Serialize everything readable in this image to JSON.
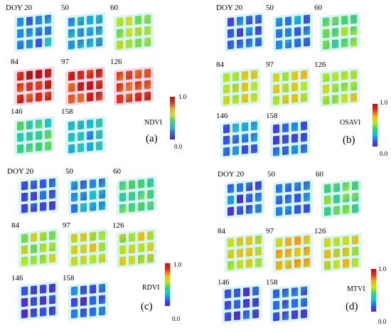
{
  "colors": {
    "ramp": [
      "#5b1cc8",
      "#2a5ff5",
      "#19c3d6",
      "#3cd36b",
      "#bfe91c",
      "#f0b21a",
      "#e8321a",
      "#b01010"
    ],
    "bg_halo": [
      "#d7f5f2",
      "#f6d6e8"
    ]
  },
  "panels": [
    {
      "id": "a",
      "letter": "(a)",
      "index_name": "NDVI",
      "cbar_max": "1.0",
      "cbar_min": "0.0",
      "groups": [
        {
          "label": "DOY 20",
          "level": 0.2
        },
        {
          "label": "50",
          "level": 0.25
        },
        {
          "label": "60",
          "level": 0.55
        },
        {
          "label": "84",
          "level": 0.9
        },
        {
          "label": "97",
          "level": 0.9
        },
        {
          "label": "126",
          "level": 0.88
        },
        {
          "label": "146",
          "level": 0.4
        },
        {
          "label": "158",
          "level": 0.25
        }
      ]
    },
    {
      "id": "b",
      "letter": "(b)",
      "index_name": "OSAVI",
      "cbar_max": "1.0",
      "cbar_min": "0.0",
      "groups": [
        {
          "label": "DOY 20",
          "level": 0.15
        },
        {
          "label": "50",
          "level": 0.2
        },
        {
          "label": "60",
          "level": 0.45
        },
        {
          "label": "84",
          "level": 0.6
        },
        {
          "label": "97",
          "level": 0.62
        },
        {
          "label": "126",
          "level": 0.58
        },
        {
          "label": "146",
          "level": 0.18
        },
        {
          "label": "158",
          "level": 0.15
        }
      ]
    },
    {
      "id": "c",
      "letter": "(c)",
      "index_name": "RDVI",
      "cbar_max": "1.0",
      "cbar_min": "0.0",
      "groups": [
        {
          "label": "DOY 20",
          "level": 0.12
        },
        {
          "label": "50",
          "level": 0.2
        },
        {
          "label": "60",
          "level": 0.42
        },
        {
          "label": "84",
          "level": 0.58
        },
        {
          "label": "97",
          "level": 0.6
        },
        {
          "label": "126",
          "level": 0.58
        },
        {
          "label": "146",
          "level": 0.12
        },
        {
          "label": "158",
          "level": 0.12
        }
      ]
    },
    {
      "id": "d",
      "letter": "(d)",
      "index_name": "MTVI",
      "cbar_max": "1.0",
      "cbar_min": "0.0",
      "groups": [
        {
          "label": "DOY 20",
          "level": 0.12
        },
        {
          "label": "50",
          "level": 0.18
        },
        {
          "label": "60",
          "level": 0.45
        },
        {
          "label": "84",
          "level": 0.6
        },
        {
          "label": "97",
          "level": 0.68
        },
        {
          "label": "126",
          "level": 0.62
        },
        {
          "label": "146",
          "level": 0.12
        },
        {
          "label": "158",
          "level": 0.12
        }
      ]
    }
  ]
}
